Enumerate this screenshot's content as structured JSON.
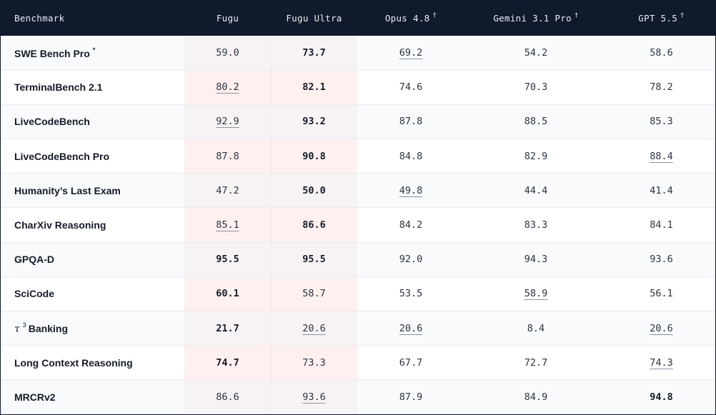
{
  "chart_data": {
    "type": "table",
    "columns": [
      {
        "label": "Benchmark"
      },
      {
        "label": "Fugu",
        "mark": ""
      },
      {
        "label": "Fugu Ultra",
        "mark": ""
      },
      {
        "label": "Opus 4.8",
        "mark": "†"
      },
      {
        "label": "Gemini 3.1 Pro",
        "mark": "†"
      },
      {
        "label": "GPT 5.5",
        "mark": "†"
      }
    ],
    "highlight_columns": [
      "Fugu",
      "Fugu Ultra"
    ],
    "rows": [
      {
        "name": "SWE Bench Pro",
        "symbol": "",
        "symbol_sup": "",
        "mark": "*",
        "values": [
          "59.0",
          "73.7",
          "69.2",
          "54.2",
          "58.6"
        ],
        "bold": [
          false,
          true,
          false,
          false,
          false
        ],
        "underline": [
          false,
          false,
          true,
          false,
          false
        ]
      },
      {
        "name": "TerminalBench 2.1",
        "symbol": "",
        "symbol_sup": "",
        "mark": "",
        "values": [
          "80.2",
          "82.1",
          "74.6",
          "70.3",
          "78.2"
        ],
        "bold": [
          false,
          true,
          false,
          false,
          false
        ],
        "underline": [
          true,
          false,
          false,
          false,
          false
        ]
      },
      {
        "name": "LiveCodeBench",
        "symbol": "",
        "symbol_sup": "",
        "mark": "",
        "values": [
          "92.9",
          "93.2",
          "87.8",
          "88.5",
          "85.3"
        ],
        "bold": [
          false,
          true,
          false,
          false,
          false
        ],
        "underline": [
          true,
          false,
          false,
          false,
          false
        ]
      },
      {
        "name": "LiveCodeBench Pro",
        "symbol": "",
        "symbol_sup": "",
        "mark": "",
        "values": [
          "87.8",
          "90.8",
          "84.8",
          "82.9",
          "88.4"
        ],
        "bold": [
          false,
          true,
          false,
          false,
          false
        ],
        "underline": [
          false,
          false,
          false,
          false,
          true
        ]
      },
      {
        "name": "Humanity’s Last Exam",
        "symbol": "",
        "symbol_sup": "",
        "mark": "",
        "values": [
          "47.2",
          "50.0",
          "49.8",
          "44.4",
          "41.4"
        ],
        "bold": [
          false,
          true,
          false,
          false,
          false
        ],
        "underline": [
          false,
          false,
          true,
          false,
          false
        ]
      },
      {
        "name": "CharXiv Reasoning",
        "symbol": "",
        "symbol_sup": "",
        "mark": "",
        "values": [
          "85.1",
          "86.6",
          "84.2",
          "83.3",
          "84.1"
        ],
        "bold": [
          false,
          true,
          false,
          false,
          false
        ],
        "underline": [
          true,
          false,
          false,
          false,
          false
        ]
      },
      {
        "name": "GPQA-D",
        "symbol": "",
        "symbol_sup": "",
        "mark": "",
        "values": [
          "95.5",
          "95.5",
          "92.0",
          "94.3",
          "93.6"
        ],
        "bold": [
          true,
          true,
          false,
          false,
          false
        ],
        "underline": [
          false,
          false,
          false,
          false,
          false
        ]
      },
      {
        "name": "SciCode",
        "symbol": "",
        "symbol_sup": "",
        "mark": "",
        "values": [
          "60.1",
          "58.7",
          "53.5",
          "58.9",
          "56.1"
        ],
        "bold": [
          true,
          false,
          false,
          false,
          false
        ],
        "underline": [
          false,
          false,
          false,
          true,
          false
        ]
      },
      {
        "name": "Banking",
        "symbol": "τ",
        "symbol_sup": "3",
        "mark": "",
        "values": [
          "21.7",
          "20.6",
          "20.6",
          "8.4",
          "20.6"
        ],
        "bold": [
          true,
          false,
          false,
          false,
          false
        ],
        "underline": [
          false,
          true,
          true,
          false,
          true
        ]
      },
      {
        "name": "Long Context Reasoning",
        "symbol": "",
        "symbol_sup": "",
        "mark": "",
        "values": [
          "74.7",
          "73.3",
          "67.7",
          "72.7",
          "74.3"
        ],
        "bold": [
          true,
          false,
          false,
          false,
          false
        ],
        "underline": [
          false,
          false,
          false,
          false,
          true
        ]
      },
      {
        "name": "MRCRv2",
        "symbol": "",
        "symbol_sup": "",
        "mark": "",
        "values": [
          "86.6",
          "93.6",
          "87.9",
          "84.9",
          "94.8"
        ],
        "bold": [
          false,
          false,
          false,
          false,
          true
        ],
        "underline": [
          false,
          true,
          false,
          false,
          false
        ]
      }
    ]
  },
  "colors": {
    "header_bg": "#111a2b",
    "header_text": "#e8ecf2",
    "highlight_bg": "#fdf0ef",
    "row_border": "#e8ebf0",
    "text": "#2c3440"
  }
}
